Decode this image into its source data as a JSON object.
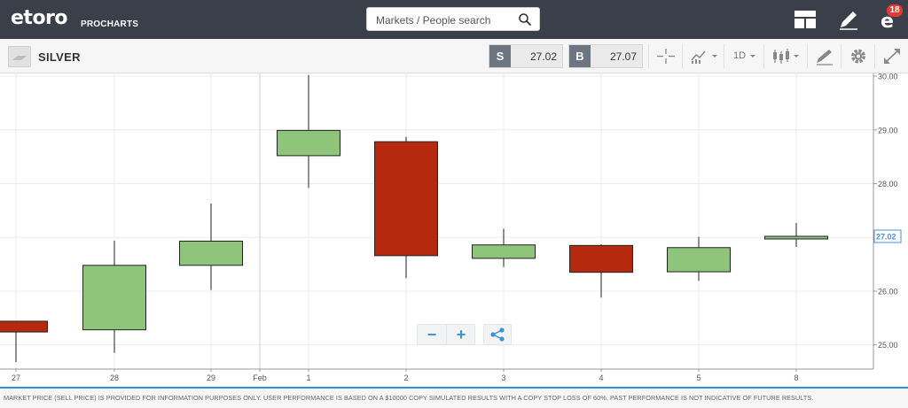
{
  "header": {
    "logo": "etoro",
    "logo_sub": "PROCHARTS",
    "search_placeholder": "Markets / People search",
    "notification_count": "18"
  },
  "instrument": {
    "name": "SILVER",
    "sell_tag": "S",
    "sell_price": "27.02",
    "buy_tag": "B",
    "buy_price": "27.07",
    "timeframe": "1D"
  },
  "footer": {
    "disclaimer": "MARKET PRICE (SELL PRICE) IS PROVIDED FOR INFORMATION PURPOSES ONLY. USER PERFORMANCE IS BASED ON A $10000 COPY SIMULATED RESULTS WITH A COPY STOP LOSS OF 60%. PAST PERFORMANCE IS NOT INDICATIVE OF FUTURE RESULTS."
  },
  "colors": {
    "topbar": "#3b3f4a",
    "up_candle": "#8ec57a",
    "down_candle": "#b52a0e",
    "accent": "#2f8fd8",
    "current_price_label": "#4a90d9"
  },
  "zoom_controls": {
    "zoom_out": "−",
    "zoom_in": "+"
  },
  "chart_data": {
    "type": "candlestick",
    "x_tick_labels": [
      "27",
      "28",
      "29",
      "Feb",
      "1",
      "2",
      "3",
      "4",
      "5",
      "8"
    ],
    "y_ticks": [
      "25.00",
      "26.00",
      "27.00",
      "28.00",
      "29.00",
      "30.00"
    ],
    "ylim": [
      24.55,
      30.05
    ],
    "current_price": "27.02",
    "candles": [
      {
        "date": "27",
        "open": 25.44,
        "high": 25.44,
        "low": 24.68,
        "close": 25.24
      },
      {
        "date": "28",
        "open": 25.28,
        "high": 26.94,
        "low": 24.85,
        "close": 26.48
      },
      {
        "date": "29",
        "open": 26.48,
        "high": 27.63,
        "low": 26.02,
        "close": 26.93
      },
      {
        "date": "1",
        "open": 28.52,
        "high": 30.02,
        "low": 27.92,
        "close": 28.99
      },
      {
        "date": "2",
        "open": 28.78,
        "high": 28.87,
        "low": 26.24,
        "close": 26.66
      },
      {
        "date": "3",
        "open": 26.61,
        "high": 27.16,
        "low": 26.45,
        "close": 26.86
      },
      {
        "date": "4",
        "open": 26.85,
        "high": 26.87,
        "low": 25.88,
        "close": 26.35
      },
      {
        "date": "5",
        "open": 26.36,
        "high": 27.01,
        "low": 26.19,
        "close": 26.81
      },
      {
        "date": "8",
        "open": 26.97,
        "high": 27.27,
        "low": 26.82,
        "close": 27.02
      }
    ],
    "grid": true
  }
}
